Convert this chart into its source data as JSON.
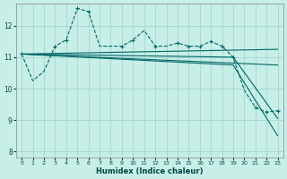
{
  "xlabel": "Humidex (Indice chaleur)",
  "bg_color": "#c8eee8",
  "grid_color": "#a0d8d0",
  "line_color": "#006666",
  "xlim": [
    -0.5,
    23.5
  ],
  "ylim": [
    7.8,
    12.7
  ],
  "xticks": [
    0,
    1,
    2,
    3,
    4,
    5,
    6,
    7,
    8,
    9,
    10,
    11,
    12,
    13,
    14,
    15,
    16,
    17,
    18,
    19,
    20,
    21,
    22,
    23
  ],
  "yticks": [
    8,
    9,
    10,
    11,
    12
  ],
  "jagged_x": [
    0,
    1,
    2,
    3,
    4,
    5,
    6,
    7,
    8,
    9,
    10,
    11,
    12,
    13,
    14,
    15,
    16,
    17,
    18,
    19,
    20,
    21,
    22,
    23
  ],
  "jagged_y": [
    11.1,
    10.25,
    10.55,
    11.35,
    11.55,
    12.55,
    12.45,
    11.35,
    11.35,
    11.35,
    11.55,
    11.85,
    11.35,
    11.35,
    11.45,
    11.35,
    11.35,
    11.5,
    11.35,
    11.0,
    9.95,
    9.4,
    9.25,
    9.3
  ],
  "marker_x": [
    0,
    3,
    4,
    5,
    6,
    9,
    10,
    12,
    14,
    15,
    16,
    17,
    18,
    19,
    21,
    22,
    23
  ],
  "marker_y": [
    11.1,
    11.35,
    11.55,
    12.55,
    12.45,
    11.35,
    11.55,
    11.35,
    11.45,
    11.35,
    11.35,
    11.5,
    11.35,
    11.0,
    9.4,
    9.25,
    9.3
  ],
  "line1_x": [
    0,
    23
  ],
  "line1_y": [
    11.1,
    11.25
  ],
  "line2_x": [
    0,
    23
  ],
  "line2_y": [
    11.1,
    10.75
  ],
  "line3_x": [
    0,
    19,
    23
  ],
  "line3_y": [
    11.1,
    10.75,
    8.5
  ],
  "line4_x": [
    0,
    19,
    23
  ],
  "line4_y": [
    11.1,
    11.0,
    9.05
  ]
}
